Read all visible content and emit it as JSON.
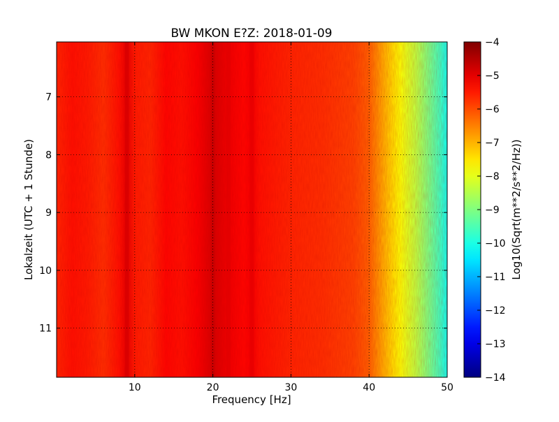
{
  "chart_data": {
    "type": "heatmap",
    "title": "BW MKON E?Z: 2018-01-09",
    "xlabel": "Frequency [Hz]",
    "ylabel": "Lokalzeit (UTC + 1 Stunde)",
    "xlim": [
      0,
      50
    ],
    "ylim": [
      6.05,
      11.85
    ],
    "y_inverted": true,
    "x_ticks": [
      10,
      20,
      30,
      40,
      50
    ],
    "y_ticks": [
      7,
      8,
      9,
      10,
      11
    ],
    "grid": true,
    "colormap": "jet",
    "colorbar": {
      "label": "Log10(Sqrt(m**2/s**2/Hz))",
      "range": [
        -14,
        -4
      ],
      "ticks": [
        -4,
        -5,
        -6,
        -7,
        -8,
        -9,
        -10,
        -11,
        -12,
        -13,
        -14
      ]
    },
    "spectrum_profile": {
      "frequency_hz": [
        0,
        2,
        4,
        6,
        8,
        9,
        10,
        12,
        14,
        16,
        18,
        20,
        22,
        24,
        25,
        26,
        28,
        30,
        32,
        34,
        36,
        38,
        40,
        41,
        42,
        43,
        44,
        45,
        46,
        47,
        48,
        49,
        50
      ],
      "log10_amplitude": [
        -5.6,
        -5.4,
        -5.5,
        -5.7,
        -5.4,
        -5.0,
        -5.5,
        -5.6,
        -5.3,
        -5.4,
        -5.2,
        -4.85,
        -5.1,
        -5.3,
        -5.15,
        -5.4,
        -5.5,
        -5.6,
        -5.65,
        -5.7,
        -5.8,
        -5.9,
        -6.2,
        -6.6,
        -7.0,
        -7.4,
        -7.8,
        -8.1,
        -8.4,
        -8.8,
        -9.2,
        -9.6,
        -10.1
      ]
    }
  }
}
